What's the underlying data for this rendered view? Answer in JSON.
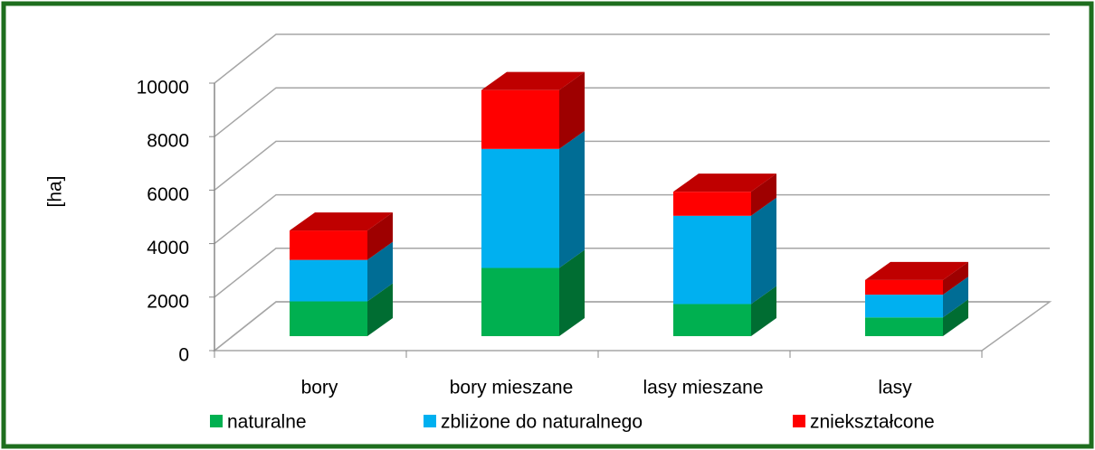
{
  "chart_data": {
    "type": "bar3d_stacked",
    "y_label": "[ha]",
    "categories": [
      "bory",
      "bory mieszane",
      "lasy mieszane",
      "lasy"
    ],
    "series": [
      {
        "name": "naturalne",
        "color": "#00b050",
        "values": [
          1300,
          2550,
          1200,
          700
        ]
      },
      {
        "name": "zbliżone do naturalnego",
        "color": "#00b0f0",
        "values": [
          1550,
          4450,
          3300,
          850
        ]
      },
      {
        "name": "zniekształcone",
        "color": "#ff0000",
        "values": [
          1100,
          2200,
          900,
          550
        ]
      }
    ],
    "ylim": [
      0,
      10000
    ],
    "yticks": [
      0,
      2000,
      4000,
      6000,
      8000,
      10000
    ],
    "grid": true
  }
}
